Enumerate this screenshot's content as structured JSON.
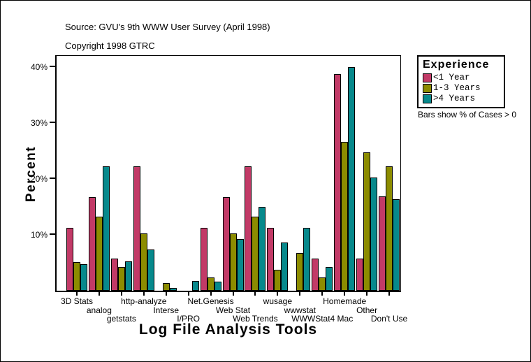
{
  "chart_data": {
    "type": "bar",
    "title": "Source: GVU's 9th WWW User Survey (April 1998)",
    "subtitle": "Copyright 1998 GTRC",
    "xlabel": "Log File Analysis Tools",
    "ylabel": "Percent",
    "ylim": [
      0,
      42
    ],
    "grid": false,
    "background": "#ffffff",
    "bar_outline_color": "#000000",
    "yticks": [
      {
        "value": 10,
        "label": "10%"
      },
      {
        "value": 20,
        "label": "20%"
      },
      {
        "value": 30,
        "label": "30%"
      },
      {
        "value": 40,
        "label": "40%"
      }
    ],
    "categories": [
      "3D Stats",
      "analog",
      "getstats",
      "http-analyze",
      "Interse",
      "I/PRO",
      "Net.Genesis",
      "Web Stat",
      "Web Trends",
      "wusage",
      "wwwstat",
      "WWWStat4 Mac",
      "Homemade",
      "Other",
      "Don't Use"
    ],
    "series": [
      {
        "name": "<1 Year",
        "color": "#C23A67",
        "values": [
          11.2,
          16.8,
          5.8,
          22.3,
          0,
          0,
          11.3,
          16.8,
          22.3,
          11.3,
          0,
          5.8,
          38.8,
          5.8,
          16.9
        ]
      },
      {
        "name": "1-3 Years",
        "color": "#8C8C00",
        "values": [
          5.1,
          13.2,
          4.3,
          10.3,
          1.4,
          0,
          2.4,
          10.3,
          13.2,
          3.7,
          6.8,
          2.4,
          26.6,
          24.7,
          22.2
        ]
      },
      {
        "name": ">4 Years",
        "color": "#07898C",
        "values": [
          4.8,
          22.2,
          5.2,
          7.4,
          0.5,
          1.8,
          1.6,
          9.2,
          15.0,
          8.6,
          11.2,
          4.3,
          40.0,
          20.3,
          16.4
        ]
      }
    ],
    "legend_title": "Experience",
    "legend_position": "top-right-outside",
    "note": "Bars show % of Cases > 0"
  }
}
